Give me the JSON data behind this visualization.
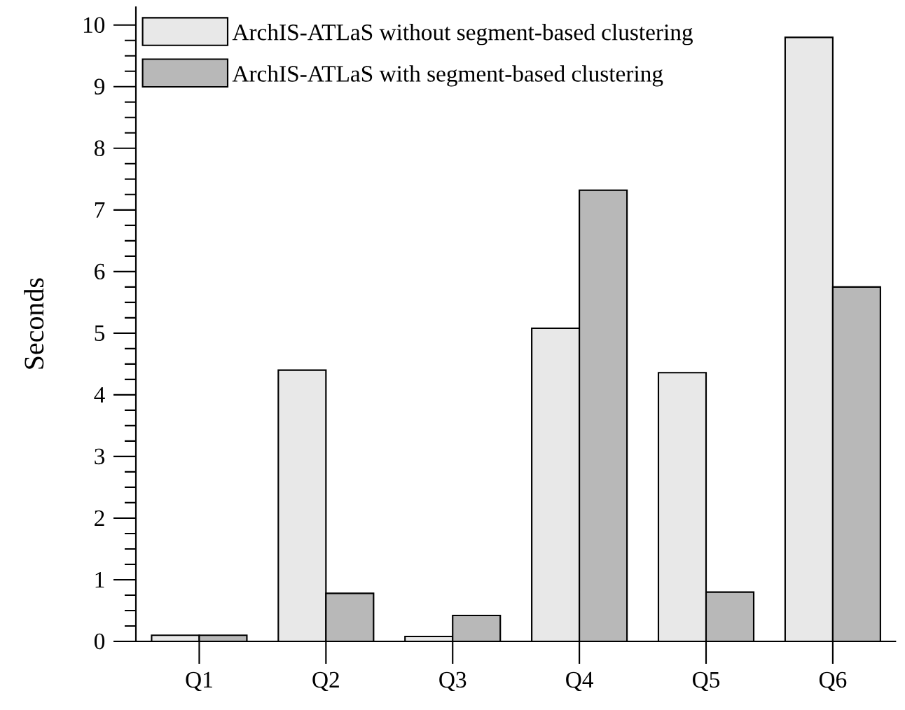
{
  "chart_data": {
    "type": "bar",
    "ylabel": "Seconds",
    "categories": [
      "Q1",
      "Q2",
      "Q3",
      "Q4",
      "Q5",
      "Q6"
    ],
    "series": [
      {
        "name": "ArchIS-ATLaS without segment-based clustering",
        "color": "#e8e8e8",
        "values": [
          0.1,
          4.4,
          0.08,
          5.08,
          4.36,
          9.8
        ]
      },
      {
        "name": "ArchIS-ATLaS with segment-based clustering",
        "color": "#b8b8b8",
        "values": [
          0.1,
          0.78,
          0.42,
          7.32,
          0.8,
          5.75
        ]
      }
    ],
    "ylim": [
      0,
      10.3
    ],
    "yticks": [
      0,
      1,
      2,
      3,
      4,
      5,
      6,
      7,
      8,
      9,
      10
    ],
    "legend": "top left",
    "grid": false
  }
}
